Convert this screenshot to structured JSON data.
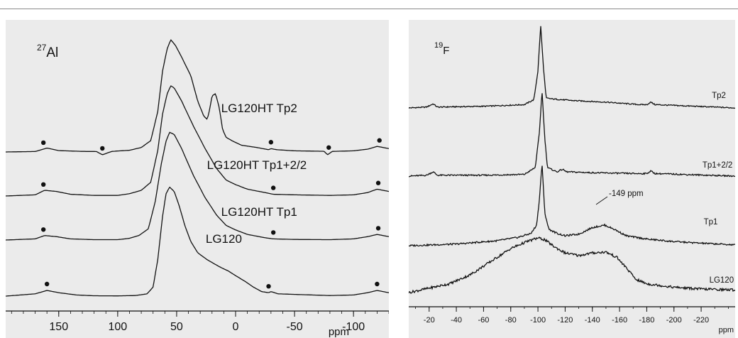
{
  "chart_data": [
    {
      "type": "line",
      "nucleus": {
        "mass": "27",
        "element": "Al"
      },
      "xlabel": "ppm",
      "xlim": [
        195,
        -130
      ],
      "xticks": [
        150,
        100,
        50,
        0,
        -50,
        -100
      ],
      "xtick_labels": [
        "150",
        "100",
        "50",
        "0",
        "-50",
        "-100"
      ],
      "grid": false,
      "series": [
        {
          "name": "LG120HT Tp2",
          "points": [
            [
              195,
              0
            ],
            [
              170,
              0.4
            ],
            [
              160,
              3.5
            ],
            [
              150,
              1.2
            ],
            [
              130,
              0.5
            ],
            [
              118,
              0.4
            ],
            [
              113,
              -2.5
            ],
            [
              105,
              0.5
            ],
            [
              90,
              1.5
            ],
            [
              80,
              4
            ],
            [
              72,
              10
            ],
            [
              66,
              36
            ],
            [
              62,
              72
            ],
            [
              58,
              92
            ],
            [
              55,
              100
            ],
            [
              51,
              95
            ],
            [
              46,
              85
            ],
            [
              38,
              68
            ],
            [
              32,
              45
            ],
            [
              27,
              32
            ],
            [
              24,
              29
            ],
            [
              22,
              38
            ],
            [
              20,
              50
            ],
            [
              17,
              52
            ],
            [
              14,
              40
            ],
            [
              11,
              20
            ],
            [
              8,
              13
            ],
            [
              3,
              10
            ],
            [
              -5,
              6
            ],
            [
              -18,
              4
            ],
            [
              -28,
              2
            ],
            [
              -30,
              3
            ],
            [
              -35,
              2
            ],
            [
              -50,
              1
            ],
            [
              -75,
              0.6
            ],
            [
              -78,
              -2.5
            ],
            [
              -82,
              0.5
            ],
            [
              -100,
              1
            ],
            [
              -112,
              2.5
            ],
            [
              -120,
              5
            ],
            [
              -125,
              4
            ],
            [
              -130,
              3
            ]
          ],
          "label_x": -20,
          "markers_x": [
            163,
            113,
            -30,
            -79,
            -122
          ]
        },
        {
          "name": "LG120HT Tp1+2/2",
          "points": [
            [
              195,
              0
            ],
            [
              170,
              1
            ],
            [
              162,
              5
            ],
            [
              152,
              4
            ],
            [
              140,
              1.5
            ],
            [
              120,
              0.5
            ],
            [
              100,
              0.5
            ],
            [
              90,
              2
            ],
            [
              80,
              5
            ],
            [
              72,
              12
            ],
            [
              66,
              40
            ],
            [
              62,
              72
            ],
            [
              58,
              90
            ],
            [
              55,
              97
            ],
            [
              52,
              95
            ],
            [
              46,
              84
            ],
            [
              36,
              62
            ],
            [
              26,
              42
            ],
            [
              16,
              24
            ],
            [
              8,
              14
            ],
            [
              0,
              10
            ],
            [
              -10,
              6
            ],
            [
              -25,
              3
            ],
            [
              -32,
              1.5
            ],
            [
              -50,
              1
            ],
            [
              -80,
              0.5
            ],
            [
              -100,
              1
            ],
            [
              -112,
              3
            ],
            [
              -120,
              6
            ],
            [
              -130,
              4
            ]
          ],
          "label_x": -18,
          "markers_x": [
            163,
            -32,
            -121
          ]
        },
        {
          "name": "LG120HT Tp1",
          "points": [
            [
              195,
              0
            ],
            [
              170,
              1
            ],
            [
              162,
              4
            ],
            [
              152,
              3
            ],
            [
              140,
              1
            ],
            [
              120,
              0.3
            ],
            [
              100,
              0.3
            ],
            [
              90,
              1.5
            ],
            [
              82,
              4
            ],
            [
              74,
              10
            ],
            [
              68,
              35
            ],
            [
              63,
              68
            ],
            [
              59,
              88
            ],
            [
              56,
              96
            ],
            [
              52,
              94
            ],
            [
              46,
              82
            ],
            [
              36,
              58
            ],
            [
              26,
              38
            ],
            [
              16,
              22
            ],
            [
              8,
              13
            ],
            [
              0,
              9
            ],
            [
              -10,
              5
            ],
            [
              -25,
              2
            ],
            [
              -32,
              1
            ],
            [
              -50,
              0.5
            ],
            [
              -80,
              0.3
            ],
            [
              -100,
              1
            ],
            [
              -112,
              3
            ],
            [
              -120,
              5
            ],
            [
              -130,
              3
            ]
          ],
          "label_x": -20,
          "markers_x": [
            163,
            -32,
            -121
          ]
        },
        {
          "name": "LG120",
          "points": [
            [
              195,
              0
            ],
            [
              170,
              2
            ],
            [
              160,
              5
            ],
            [
              150,
              3
            ],
            [
              135,
              1
            ],
            [
              120,
              0.3
            ],
            [
              100,
              0.2
            ],
            [
              85,
              0.5
            ],
            [
              75,
              2
            ],
            [
              70,
              8
            ],
            [
              66,
              32
            ],
            [
              62,
              70
            ],
            [
              59,
              90
            ],
            [
              56,
              96
            ],
            [
              52,
              92
            ],
            [
              48,
              80
            ],
            [
              43,
              62
            ],
            [
              38,
              48
            ],
            [
              32,
              38
            ],
            [
              24,
              32
            ],
            [
              14,
              26
            ],
            [
              6,
              22
            ],
            [
              0,
              18
            ],
            [
              -8,
              13
            ],
            [
              -15,
              8
            ],
            [
              -22,
              4
            ],
            [
              -28,
              3
            ],
            [
              -30,
              4
            ],
            [
              -36,
              2
            ],
            [
              -50,
              1.5
            ],
            [
              -80,
              0.5
            ],
            [
              -100,
              1
            ],
            [
              -112,
              3
            ],
            [
              -120,
              5
            ],
            [
              -130,
              3
            ]
          ],
          "label_x": 10,
          "markers_x": [
            160,
            -28,
            -120
          ]
        }
      ]
    },
    {
      "type": "line",
      "nucleus": {
        "mass": "19",
        "element": "F"
      },
      "xlabel": "ppm",
      "xlim": [
        -5,
        -245
      ],
      "xticks": [
        -20,
        -40,
        -60,
        -80,
        -100,
        -120,
        -140,
        -160,
        -180,
        -200,
        -220
      ],
      "xtick_labels": [
        "-20",
        "-40",
        "-60",
        "-80",
        "-100",
        "-120",
        "-140",
        "-160",
        "-180",
        "-200",
        "-220"
      ],
      "grid": false,
      "annotations": [
        {
          "text": "-149 ppm",
          "x": -149
        }
      ],
      "series": [
        {
          "name": "Tp2",
          "points": [
            [
              -5,
              0
            ],
            [
              -18,
              1
            ],
            [
              -23,
              5
            ],
            [
              -26,
              1
            ],
            [
              -60,
              2
            ],
            [
              -90,
              4
            ],
            [
              -97,
              10
            ],
            [
              -100,
              45
            ],
            [
              -102,
              100
            ],
            [
              -104,
              50
            ],
            [
              -106,
              12
            ],
            [
              -110,
              11
            ],
            [
              -125,
              9
            ],
            [
              -150,
              7
            ],
            [
              -175,
              4
            ],
            [
              -180,
              4
            ],
            [
              -183,
              7
            ],
            [
              -186,
              4
            ],
            [
              -245,
              0
            ]
          ],
          "label_x": -233
        },
        {
          "name": "Tp1+2/2",
          "points": [
            [
              -5,
              0
            ],
            [
              -18,
              1
            ],
            [
              -23,
              5
            ],
            [
              -26,
              1
            ],
            [
              -60,
              1
            ],
            [
              -90,
              2
            ],
            [
              -98,
              10
            ],
            [
              -101,
              50
            ],
            [
              -103,
              100
            ],
            [
              -105,
              45
            ],
            [
              -107,
              10
            ],
            [
              -114,
              5
            ],
            [
              -118,
              8
            ],
            [
              -121,
              5
            ],
            [
              -140,
              4
            ],
            [
              -170,
              3
            ],
            [
              -180,
              3
            ],
            [
              -183,
              6
            ],
            [
              -186,
              3
            ],
            [
              -245,
              0
            ]
          ],
          "label_x": -232
        },
        {
          "name": "Tp1",
          "points": [
            [
              -5,
              0
            ],
            [
              -40,
              2
            ],
            [
              -70,
              6
            ],
            [
              -85,
              10
            ],
            [
              -95,
              15
            ],
            [
              -99,
              25
            ],
            [
              -101,
              55
            ],
            [
              -103,
              100
            ],
            [
              -105,
              40
            ],
            [
              -108,
              20
            ],
            [
              -114,
              15
            ],
            [
              -120,
              12
            ],
            [
              -130,
              14
            ],
            [
              -140,
              22
            ],
            [
              -149,
              25
            ],
            [
              -156,
              20
            ],
            [
              -165,
              12
            ],
            [
              -180,
              8
            ],
            [
              -200,
              5
            ],
            [
              -220,
              3
            ],
            [
              -245,
              1
            ]
          ],
          "label_x": -227
        },
        {
          "name": "LG120",
          "points": [
            [
              -5,
              0
            ],
            [
              -20,
              5
            ],
            [
              -35,
              10
            ],
            [
              -50,
              20
            ],
            [
              -65,
              35
            ],
            [
              -80,
              50
            ],
            [
              -92,
              58
            ],
            [
              -100,
              62
            ],
            [
              -105,
              60
            ],
            [
              -112,
              52
            ],
            [
              -120,
              45
            ],
            [
              -130,
              42
            ],
            [
              -140,
              45
            ],
            [
              -150,
              46
            ],
            [
              -158,
              40
            ],
            [
              -165,
              28
            ],
            [
              -172,
              15
            ],
            [
              -180,
              10
            ],
            [
              -200,
              6
            ],
            [
              -220,
              4
            ],
            [
              -245,
              3
            ]
          ],
          "label_x": -235
        }
      ]
    }
  ]
}
